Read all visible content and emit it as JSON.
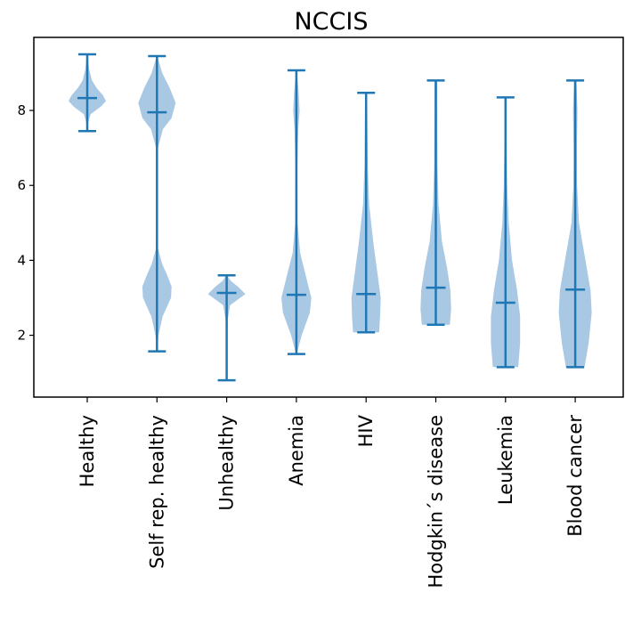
{
  "chart_data": {
    "type": "violin",
    "title": "NCCIS",
    "xlabel": "",
    "ylabel": "",
    "ylim": [
      0.35,
      9.95
    ],
    "yticks": [
      2,
      4,
      6,
      8
    ],
    "colors": {
      "body": "#a8c8e4",
      "line": "#1f77b4"
    },
    "categories": [
      {
        "label": "Healthy",
        "min": 7.45,
        "max": 9.5,
        "median": 8.33,
        "shape": [
          [
            7.45,
            0.02
          ],
          [
            7.7,
            0.06
          ],
          [
            7.9,
            0.18
          ],
          [
            8.1,
            0.72
          ],
          [
            8.25,
            1.0
          ],
          [
            8.4,
            0.85
          ],
          [
            8.6,
            0.5
          ],
          [
            8.8,
            0.25
          ],
          [
            9.1,
            0.1
          ],
          [
            9.5,
            0.02
          ]
        ]
      },
      {
        "label": "Self rep. healthy",
        "min": 1.57,
        "max": 9.45,
        "median": 7.95,
        "shape": [
          [
            1.57,
            0.02
          ],
          [
            2.0,
            0.08
          ],
          [
            2.5,
            0.3
          ],
          [
            3.0,
            0.75
          ],
          [
            3.3,
            0.78
          ],
          [
            3.6,
            0.55
          ],
          [
            3.9,
            0.28
          ],
          [
            4.3,
            0.06
          ],
          [
            5.0,
            0.02
          ],
          [
            6.0,
            0.02
          ],
          [
            7.0,
            0.05
          ],
          [
            7.5,
            0.32
          ],
          [
            7.8,
            0.78
          ],
          [
            8.2,
            1.0
          ],
          [
            8.6,
            0.68
          ],
          [
            9.0,
            0.28
          ],
          [
            9.45,
            0.02
          ]
        ]
      },
      {
        "label": "Unhealthy",
        "min": 0.8,
        "max": 3.6,
        "median": 3.13,
        "shape": [
          [
            0.8,
            0.02
          ],
          [
            1.6,
            0.02
          ],
          [
            2.4,
            0.05
          ],
          [
            2.8,
            0.18
          ],
          [
            3.1,
            1.0
          ],
          [
            3.3,
            0.6
          ],
          [
            3.45,
            0.22
          ],
          [
            3.6,
            0.02
          ]
        ]
      },
      {
        "label": "Anemia",
        "min": 1.5,
        "max": 9.07,
        "median": 3.08,
        "shape": [
          [
            1.5,
            0.02
          ],
          [
            2.0,
            0.28
          ],
          [
            2.6,
            0.72
          ],
          [
            3.0,
            0.8
          ],
          [
            3.5,
            0.55
          ],
          [
            4.2,
            0.2
          ],
          [
            5.0,
            0.06
          ],
          [
            6.5,
            0.05
          ],
          [
            7.5,
            0.1
          ],
          [
            8.0,
            0.17
          ],
          [
            8.5,
            0.12
          ],
          [
            9.07,
            0.02
          ]
        ]
      },
      {
        "label": "HIV",
        "min": 2.08,
        "max": 8.47,
        "median": 3.1,
        "shape": [
          [
            2.08,
            0.7
          ],
          [
            2.5,
            0.75
          ],
          [
            3.0,
            0.78
          ],
          [
            3.5,
            0.65
          ],
          [
            4.5,
            0.38
          ],
          [
            5.5,
            0.16
          ],
          [
            6.5,
            0.09
          ],
          [
            7.5,
            0.07
          ],
          [
            8.47,
            0.05
          ]
        ]
      },
      {
        "label": "Hodgkin´s disease",
        "min": 2.28,
        "max": 8.8,
        "median": 3.27,
        "shape": [
          [
            2.28,
            0.75
          ],
          [
            2.7,
            0.82
          ],
          [
            3.2,
            0.78
          ],
          [
            3.8,
            0.6
          ],
          [
            4.5,
            0.33
          ],
          [
            5.5,
            0.15
          ],
          [
            6.5,
            0.09
          ],
          [
            7.5,
            0.08
          ],
          [
            8.8,
            0.07
          ]
        ]
      },
      {
        "label": "Leukemia",
        "min": 1.15,
        "max": 8.35,
        "median": 2.87,
        "shape": [
          [
            1.15,
            0.68
          ],
          [
            1.8,
            0.78
          ],
          [
            2.5,
            0.78
          ],
          [
            3.2,
            0.62
          ],
          [
            4.0,
            0.35
          ],
          [
            5.0,
            0.17
          ],
          [
            6.0,
            0.09
          ],
          [
            7.0,
            0.06
          ],
          [
            8.35,
            0.04
          ]
        ]
      },
      {
        "label": "Blood cancer",
        "min": 1.15,
        "max": 8.8,
        "median": 3.22,
        "shape": [
          [
            1.15,
            0.5
          ],
          [
            1.8,
            0.72
          ],
          [
            2.6,
            0.88
          ],
          [
            3.2,
            0.82
          ],
          [
            4.0,
            0.55
          ],
          [
            5.0,
            0.2
          ],
          [
            6.0,
            0.1
          ],
          [
            7.0,
            0.09
          ],
          [
            8.0,
            0.12
          ],
          [
            8.8,
            0.06
          ]
        ]
      }
    ]
  }
}
